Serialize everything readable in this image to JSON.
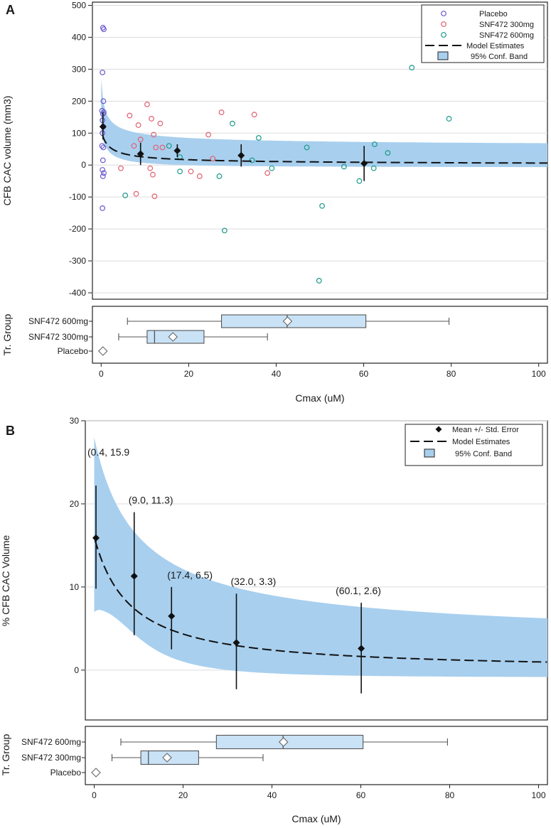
{
  "chart_data": [
    {
      "panel": "A",
      "type": "scatter",
      "ylabel": "CFB CAC volume (mm3)",
      "xlabel": "Cmax (uM)",
      "xlim": [
        -2,
        102
      ],
      "ylim": [
        -420,
        510
      ],
      "x_ticks": [
        0,
        20,
        40,
        60,
        80,
        100
      ],
      "y_ticks": [
        -400,
        -300,
        -200,
        -100,
        0,
        100,
        200,
        300,
        400,
        500
      ],
      "colors": {
        "placebo": "#6a5acd",
        "snf300": "#e06070",
        "snf600": "#1a9a8a",
        "band": "#a8cfee",
        "box": "#c9e2f6"
      },
      "legend": [
        "Placebo",
        "SNF472 300mg",
        "SNF472 600mg",
        "Model Estimates",
        "95% Conf. Band"
      ],
      "series": [
        {
          "name": "Placebo",
          "points": [
            [
              0.4,
              430
            ],
            [
              0.6,
              425
            ],
            [
              0.3,
              290
            ],
            [
              0.5,
              200
            ],
            [
              0.2,
              170
            ],
            [
              0.6,
              165
            ],
            [
              0.4,
              160
            ],
            [
              0.3,
              140
            ],
            [
              0.5,
              120
            ],
            [
              0.3,
              100
            ],
            [
              0.2,
              60
            ],
            [
              0.5,
              55
            ],
            [
              0.4,
              15
            ],
            [
              0.3,
              -15
            ],
            [
              0.6,
              -25
            ],
            [
              0.4,
              -35
            ],
            [
              0.3,
              -135
            ]
          ]
        },
        {
          "name": "SNF472 300mg",
          "points": [
            [
              6.5,
              155
            ],
            [
              10.5,
              190
            ],
            [
              8.5,
              125
            ],
            [
              11.5,
              145
            ],
            [
              12,
              95
            ],
            [
              13.5,
              130
            ],
            [
              9,
              80
            ],
            [
              12.5,
              55
            ],
            [
              14,
              55
            ],
            [
              7.5,
              60
            ],
            [
              11.2,
              -10
            ],
            [
              11.8,
              -30
            ],
            [
              4.5,
              -10
            ],
            [
              8,
              -90
            ],
            [
              12.2,
              -98
            ],
            [
              20.5,
              -20
            ],
            [
              22.5,
              -35
            ],
            [
              24.5,
              95
            ],
            [
              25.5,
              20
            ],
            [
              27.5,
              165
            ],
            [
              35,
              158
            ],
            [
              38,
              -25
            ]
          ]
        },
        {
          "name": "SNF472 600mg",
          "points": [
            [
              5.5,
              -95
            ],
            [
              15.5,
              60
            ],
            [
              18,
              25
            ],
            [
              18,
              -20
            ],
            [
              27,
              -35
            ],
            [
              28.2,
              -205
            ],
            [
              30,
              130
            ],
            [
              34.5,
              15
            ],
            [
              36,
              85
            ],
            [
              39,
              -10
            ],
            [
              47,
              55
            ],
            [
              49.8,
              -362
            ],
            [
              50.5,
              -128
            ],
            [
              55.5,
              -5
            ],
            [
              59,
              -50
            ],
            [
              62.3,
              -10
            ],
            [
              62.5,
              65
            ],
            [
              65.5,
              38
            ],
            [
              71,
              305
            ],
            [
              79.5,
              145
            ]
          ]
        }
      ],
      "means": [
        {
          "x": 0.4,
          "y": 120,
          "lo": 80,
          "hi": 165
        },
        {
          "x": 9.0,
          "y": 35,
          "lo": 0,
          "hi": 70
        },
        {
          "x": 17.4,
          "y": 45,
          "lo": 25,
          "hi": 65
        },
        {
          "x": 32.0,
          "y": 30,
          "lo": -5,
          "hi": 65
        },
        {
          "x": 60.1,
          "y": 5,
          "lo": -50,
          "hi": 60
        }
      ],
      "model_params": {
        "a": 110,
        "p": 0.62
      },
      "band_params": {
        "up_a": 55,
        "up_b": 135,
        "lo_a": -8,
        "lo_b": 165
      },
      "boxplot": {
        "ylabel": "Tr. Group",
        "groups": [
          {
            "label": "SNF472 600mg",
            "min": 6,
            "q1": 27.5,
            "median": 42.5,
            "q3": 60.5,
            "max": 79.5,
            "mean": 42.6
          },
          {
            "label": "SNF472 300mg",
            "min": 4,
            "q1": 10.5,
            "median": 12.2,
            "q3": 23.5,
            "max": 38,
            "mean": 16.4
          },
          {
            "label": "Placebo",
            "min": 0.3,
            "q1": 0.3,
            "median": 0.3,
            "q3": 0.3,
            "max": 0.3,
            "mean": 0.4
          }
        ]
      }
    },
    {
      "panel": "B",
      "type": "line",
      "ylabel": "% CFB CAC Volume",
      "xlabel": "Cmax (uM)",
      "xlim": [
        -2,
        102
      ],
      "ylim": [
        -6,
        30
      ],
      "x_ticks": [
        0,
        20,
        40,
        60,
        80,
        100
      ],
      "y_ticks": [
        0,
        10,
        20,
        30
      ],
      "colors": {
        "band": "#a8cfee",
        "box": "#c9e2f6"
      },
      "legend": [
        "Mean +/- Std. Error",
        "Model Estimates",
        "95% Conf. Band"
      ],
      "means": [
        {
          "x": 0.4,
          "y": 15.9,
          "lo": 9.8,
          "hi": 22.2,
          "label": "(0.4, 15.9"
        },
        {
          "x": 9.0,
          "y": 11.3,
          "lo": 4.2,
          "hi": 19.0,
          "label": "(9.0, 11.3)"
        },
        {
          "x": 17.4,
          "y": 6.5,
          "lo": 2.5,
          "hi": 10.0,
          "label": "(17.4, 6.5)"
        },
        {
          "x": 32.0,
          "y": 3.3,
          "lo": -2.3,
          "hi": 9.2,
          "label": "(32.0, 3.3)"
        },
        {
          "x": 60.1,
          "y": 2.6,
          "lo": -2.8,
          "hi": 8.1,
          "label": "(60.1, 2.6)"
        }
      ],
      "model_params": {
        "a": 16.0,
        "p": 0.66
      },
      "boxplot": {
        "ylabel": "Tr. Group",
        "groups": [
          {
            "label": "SNF472 600mg",
            "min": 6,
            "q1": 27.5,
            "median": 42.5,
            "q3": 60.5,
            "max": 79.5,
            "mean": 42.6
          },
          {
            "label": "SNF472 300mg",
            "min": 4,
            "q1": 10.5,
            "median": 12.2,
            "q3": 23.5,
            "max": 38,
            "mean": 16.4
          },
          {
            "label": "Placebo",
            "min": 0.3,
            "q1": 0.3,
            "median": 0.3,
            "q3": 0.3,
            "max": 0.3,
            "mean": 0.4
          }
        ]
      }
    }
  ]
}
